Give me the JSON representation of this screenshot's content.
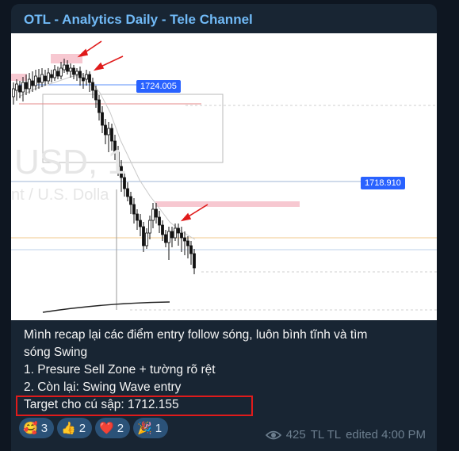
{
  "channel": {
    "title": "OTL - Analytics Daily - Tele Channel"
  },
  "chart": {
    "watermark_big": "USD, 1",
    "watermark_small": "nt / U.S. Dolla",
    "price_labels": [
      "1724.005",
      "1718.910"
    ],
    "colors": {
      "label_bg": "#2962ff",
      "zone": "#f7c8d1",
      "arrow": "#e01b1b"
    }
  },
  "message": {
    "lines": [
      "Mình recap lại các điểm entry follow sóng, luôn bình tĩnh và tìm",
      "sóng Swing",
      "1. Presure Sell Zone + tường rõ rệt",
      "2. Còn lại: Swing Wave entry",
      "Target cho cú sập: 1712.155"
    ],
    "highlighted_line": "Target cho cú sập: 1712.155"
  },
  "reactions": [
    {
      "emoji": "🥰",
      "count": "3"
    },
    {
      "emoji": "👍",
      "count": "2"
    },
    {
      "emoji": "❤️",
      "count": "2"
    },
    {
      "emoji": "🎉",
      "count": "1"
    }
  ],
  "meta": {
    "views": "425",
    "author": "TL TL",
    "edited": "edited 4:00 PM"
  }
}
